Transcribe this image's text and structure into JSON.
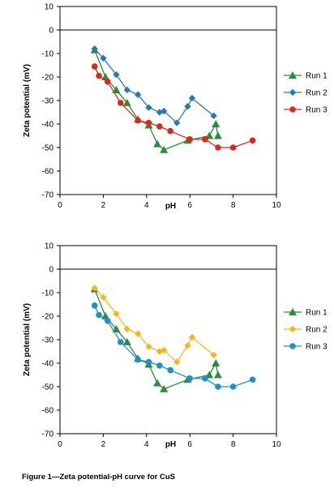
{
  "caption": "Figure 1—Zeta potential-pH curve for CuS",
  "chart_data": [
    {
      "type": "line",
      "xlabel": "pH",
      "ylabel": "Zeta potential (mV)",
      "xlim": [
        0,
        10
      ],
      "ylim": [
        -70,
        10
      ],
      "xticks": [
        0,
        2,
        4,
        6,
        8,
        10
      ],
      "yticks": [
        10,
        0,
        -10,
        -20,
        -30,
        -40,
        -50,
        -60,
        -70
      ],
      "legend": "right",
      "series": [
        {
          "name": "Run 1",
          "color": "#2e8b3a",
          "marker": "triangle",
          "x": [
            1.6,
            2.1,
            2.6,
            3.1,
            3.6,
            4.1,
            4.5,
            4.8,
            5.9,
            6.9,
            7.2,
            7.3
          ],
          "y": [
            -8.5,
            -20,
            -25.5,
            -31,
            -38,
            -40.5,
            -48.5,
            -51,
            -47,
            -45,
            -40,
            -45
          ]
        },
        {
          "name": "Run 2",
          "color": "#2e75b6",
          "marker": "diamond",
          "x": [
            1.6,
            2.0,
            2.6,
            3.1,
            3.6,
            4.1,
            4.6,
            4.8,
            5.4,
            5.9,
            6.1,
            7.1
          ],
          "y": [
            -8,
            -12,
            -19,
            -25.5,
            -27.5,
            -33,
            -35,
            -34.5,
            -39.5,
            -32.5,
            -29,
            -36.5
          ]
        },
        {
          "name": "Run 3",
          "color": "#d42a20",
          "marker": "circle",
          "x": [
            1.6,
            1.8,
            2.2,
            2.8,
            3.6,
            4.1,
            4.6,
            5.1,
            6.0,
            6.7,
            7.3,
            8.0,
            8.9
          ],
          "y": [
            -15.5,
            -19.5,
            -22,
            -31,
            -38.5,
            -39.5,
            -41,
            -43,
            -46.5,
            -46.5,
            -50,
            -50,
            -47
          ]
        }
      ]
    },
    {
      "type": "line",
      "xlabel": "pH",
      "ylabel": "Zeta potential (mV)",
      "xlim": [
        0,
        10
      ],
      "ylim": [
        -70,
        10
      ],
      "xticks": [
        0,
        2,
        4,
        6,
        8,
        10
      ],
      "yticks": [
        10,
        0,
        -10,
        -20,
        -30,
        -40,
        -50,
        -60,
        -70
      ],
      "legend": "right",
      "series": [
        {
          "name": "Run 1",
          "color": "#2e8b3a",
          "marker": "triangle",
          "x": [
            1.6,
            2.1,
            2.6,
            3.1,
            3.6,
            4.1,
            4.5,
            4.8,
            5.9,
            6.9,
            7.2,
            7.3
          ],
          "y": [
            -8.5,
            -20,
            -25.5,
            -31,
            -38,
            -40.5,
            -48.5,
            -51,
            -47,
            -45,
            -40,
            -45
          ]
        },
        {
          "name": "Run 2",
          "color": "#f5b81c",
          "marker": "diamond",
          "x": [
            1.6,
            2.0,
            2.6,
            3.1,
            3.6,
            4.1,
            4.6,
            4.8,
            5.4,
            5.9,
            6.1,
            7.1
          ],
          "y": [
            -8,
            -12,
            -19,
            -25.5,
            -27.5,
            -33,
            -35,
            -34.5,
            -39.5,
            -32.5,
            -29,
            -36.5
          ]
        },
        {
          "name": "Run 3",
          "color": "#1f8fc9",
          "marker": "circle",
          "x": [
            1.6,
            1.8,
            2.2,
            2.8,
            3.6,
            4.1,
            4.6,
            5.1,
            6.0,
            6.7,
            7.3,
            8.0,
            8.9
          ],
          "y": [
            -15.5,
            -19.5,
            -22,
            -31,
            -38.5,
            -39.5,
            -41,
            -43,
            -46.5,
            -46.5,
            -50,
            -50,
            -47
          ]
        }
      ]
    }
  ]
}
